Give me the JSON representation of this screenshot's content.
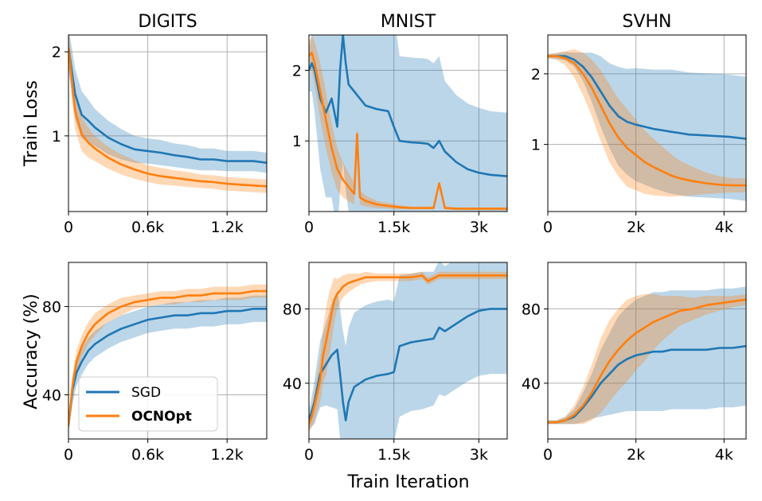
{
  "figure": {
    "ylabel_row1": "Train Loss",
    "ylabel_row2": "Accuracy (%)",
    "xlabel_shared": "Train Iteration"
  },
  "legend": {
    "entries": [
      {
        "label": "SGD",
        "color": "#1f77b4",
        "bold": false
      },
      {
        "label": "OCNOpt",
        "color": "#ff7f0e",
        "bold": true
      }
    ],
    "placement": "lower-left of DIGITS accuracy panel"
  },
  "colors": {
    "sgd": "#1f77b4",
    "ocnopt": "#ff7f0e",
    "grid": "#b0b0b0"
  },
  "chart_data": [
    {
      "id": "digits-loss",
      "type": "line",
      "title": "DIGITS",
      "ylabel": "Train Loss",
      "xlim": [
        0,
        1500
      ],
      "ylim": [
        0.1,
        2.2
      ],
      "xticks": [
        0,
        600,
        1200
      ],
      "xtick_labels": [
        "0",
        "0.6k",
        "1.2k"
      ],
      "yticks": [
        1,
        2
      ],
      "ytick_labels": [
        "1",
        "2"
      ],
      "series": [
        {
          "name": "SGD",
          "x": [
            0,
            50,
            100,
            150,
            200,
            300,
            400,
            500,
            600,
            700,
            800,
            900,
            1000,
            1100,
            1200,
            1300,
            1400,
            1500
          ],
          "y": [
            2.05,
            1.5,
            1.25,
            1.18,
            1.1,
            0.98,
            0.9,
            0.84,
            0.82,
            0.8,
            0.77,
            0.75,
            0.72,
            0.72,
            0.7,
            0.7,
            0.7,
            0.68
          ],
          "band": [
            0.25,
            0.3,
            0.28,
            0.25,
            0.22,
            0.2,
            0.18,
            0.16,
            0.15,
            0.15,
            0.14,
            0.14,
            0.13,
            0.13,
            0.12,
            0.12,
            0.12,
            0.12
          ]
        },
        {
          "name": "OCNOpt",
          "x": [
            0,
            50,
            100,
            150,
            200,
            300,
            400,
            500,
            600,
            700,
            800,
            900,
            1000,
            1100,
            1200,
            1300,
            1400,
            1500
          ],
          "y": [
            2.05,
            1.3,
            1.02,
            0.92,
            0.85,
            0.74,
            0.66,
            0.6,
            0.55,
            0.52,
            0.5,
            0.48,
            0.46,
            0.45,
            0.43,
            0.42,
            0.41,
            0.4
          ],
          "band": [
            0.2,
            0.22,
            0.2,
            0.18,
            0.15,
            0.13,
            0.12,
            0.11,
            0.1,
            0.1,
            0.09,
            0.09,
            0.08,
            0.08,
            0.08,
            0.08,
            0.08,
            0.08
          ]
        }
      ]
    },
    {
      "id": "mnist-loss",
      "type": "line",
      "title": "MNIST",
      "xlim": [
        0,
        3500
      ],
      "ylim": [
        0.0,
        2.5
      ],
      "xticks": [
        0,
        1500,
        3000
      ],
      "xtick_labels": [
        "0",
        "1.5k",
        "3k"
      ],
      "yticks": [
        1,
        2
      ],
      "ytick_labels": [
        "1",
        "2"
      ],
      "series": [
        {
          "name": "SGD",
          "x": [
            0,
            50,
            100,
            150,
            200,
            300,
            400,
            500,
            550,
            600,
            650,
            700,
            800,
            900,
            1000,
            1200,
            1400,
            1500,
            1600,
            1800,
            2000,
            2100,
            2200,
            2300,
            2400,
            2600,
            2800,
            3000,
            3200,
            3500
          ],
          "y": [
            2.0,
            2.1,
            2.0,
            1.8,
            1.6,
            1.4,
            1.6,
            1.2,
            2.0,
            2.5,
            2.1,
            1.8,
            1.7,
            1.6,
            1.5,
            1.45,
            1.42,
            1.2,
            1.0,
            0.98,
            0.97,
            0.96,
            0.9,
            1.0,
            0.85,
            0.7,
            0.6,
            0.55,
            0.52,
            0.5
          ],
          "band": [
            0.3,
            0.4,
            0.6,
            0.8,
            1.0,
            1.2,
            1.4,
            1.5,
            1.7,
            1.8,
            1.8,
            1.8,
            1.8,
            1.8,
            1.8,
            1.8,
            1.8,
            1.6,
            1.2,
            1.2,
            1.2,
            1.2,
            1.2,
            1.2,
            1.0,
            0.95,
            0.93,
            0.92,
            0.9,
            0.9
          ]
        },
        {
          "name": "OCNOpt",
          "x": [
            0,
            50,
            100,
            150,
            200,
            300,
            400,
            500,
            600,
            700,
            800,
            850,
            900,
            1000,
            1200,
            1400,
            1600,
            1800,
            2000,
            2200,
            2300,
            2400,
            2600,
            3000,
            3500
          ],
          "y": [
            2.2,
            2.25,
            2.1,
            1.9,
            1.7,
            1.3,
            0.9,
            0.6,
            0.45,
            0.35,
            0.25,
            1.1,
            0.2,
            0.15,
            0.1,
            0.08,
            0.06,
            0.05,
            0.05,
            0.05,
            0.4,
            0.05,
            0.04,
            0.04,
            0.04
          ],
          "band": [
            0.2,
            0.25,
            0.3,
            0.35,
            0.4,
            0.4,
            0.35,
            0.3,
            0.25,
            0.2,
            0.15,
            0.1,
            0.1,
            0.08,
            0.05,
            0.04,
            0.03,
            0.02,
            0.02,
            0.02,
            0.02,
            0.02,
            0.02,
            0.02,
            0.02
          ]
        }
      ]
    },
    {
      "id": "svhn-loss",
      "type": "line",
      "title": "SVHN",
      "xlim": [
        0,
        4500
      ],
      "ylim": [
        0.05,
        2.55
      ],
      "xticks": [
        0,
        2000,
        4000
      ],
      "xtick_labels": [
        "0",
        "2k",
        "4k"
      ],
      "yticks": [
        1,
        2
      ],
      "ytick_labels": [
        "1",
        "2"
      ],
      "series": [
        {
          "name": "SGD",
          "x": [
            0,
            200,
            400,
            600,
            800,
            1000,
            1200,
            1400,
            1600,
            1800,
            2000,
            2200,
            2400,
            2600,
            2800,
            3000,
            3200,
            3500,
            3800,
            4100,
            4500
          ],
          "y": [
            2.25,
            2.25,
            2.25,
            2.2,
            2.1,
            1.95,
            1.75,
            1.55,
            1.4,
            1.32,
            1.28,
            1.25,
            1.22,
            1.2,
            1.18,
            1.16,
            1.14,
            1.13,
            1.12,
            1.11,
            1.08
          ],
          "band": [
            0.03,
            0.04,
            0.06,
            0.1,
            0.2,
            0.35,
            0.5,
            0.6,
            0.7,
            0.75,
            0.8,
            0.82,
            0.84,
            0.86,
            0.88,
            0.88,
            0.88,
            0.88,
            0.88,
            0.88,
            0.88
          ]
        },
        {
          "name": "OCNOpt",
          "x": [
            0,
            200,
            400,
            600,
            800,
            1000,
            1200,
            1400,
            1600,
            1800,
            2000,
            2200,
            2400,
            2600,
            2800,
            3000,
            3300,
            3600,
            3900,
            4200,
            4500
          ],
          "y": [
            2.25,
            2.25,
            2.22,
            2.15,
            2.0,
            1.8,
            1.55,
            1.3,
            1.1,
            0.95,
            0.85,
            0.75,
            0.68,
            0.62,
            0.56,
            0.52,
            0.48,
            0.45,
            0.43,
            0.42,
            0.42
          ],
          "band": [
            0.03,
            0.05,
            0.1,
            0.2,
            0.3,
            0.4,
            0.5,
            0.55,
            0.55,
            0.55,
            0.5,
            0.45,
            0.4,
            0.35,
            0.3,
            0.25,
            0.2,
            0.15,
            0.12,
            0.1,
            0.1
          ]
        }
      ]
    },
    {
      "id": "digits-acc",
      "type": "line",
      "ylabel": "Accuracy (%)",
      "xlim": [
        0,
        1500
      ],
      "ylim": [
        20,
        100
      ],
      "xticks": [
        0,
        600,
        1200
      ],
      "xtick_labels": [
        "0",
        "0.6k",
        "1.2k"
      ],
      "yticks": [
        40,
        80
      ],
      "ytick_labels": [
        "40",
        "80"
      ],
      "series": [
        {
          "name": "SGD",
          "x": [
            0,
            30,
            60,
            100,
            150,
            200,
            300,
            400,
            500,
            600,
            700,
            800,
            900,
            1000,
            1100,
            1200,
            1300,
            1400,
            1500
          ],
          "y": [
            26,
            42,
            50,
            55,
            60,
            63,
            67,
            70,
            72,
            74,
            75,
            76,
            76,
            77,
            77,
            78,
            78,
            79,
            79
          ],
          "band": [
            3,
            6,
            6,
            6,
            6,
            6,
            6,
            6,
            6,
            6,
            6,
            6,
            6,
            6,
            6,
            6,
            6,
            6,
            6
          ]
        },
        {
          "name": "OCNOpt",
          "x": [
            0,
            30,
            60,
            100,
            150,
            200,
            300,
            400,
            500,
            600,
            700,
            800,
            900,
            1000,
            1100,
            1200,
            1300,
            1400,
            1500
          ],
          "y": [
            26,
            44,
            55,
            62,
            68,
            72,
            77,
            80,
            82,
            83,
            84,
            84,
            85,
            85,
            86,
            86,
            86,
            87,
            87
          ],
          "band": [
            3,
            5,
            5,
            5,
            5,
            5,
            4,
            4,
            3,
            3,
            3,
            3,
            3,
            3,
            3,
            3,
            3,
            3,
            3
          ]
        }
      ]
    },
    {
      "id": "mnist-acc",
      "type": "line",
      "xlabel": "Train Iteration",
      "xlim": [
        0,
        3500
      ],
      "ylim": [
        10,
        105
      ],
      "xticks": [
        0,
        1500,
        3000
      ],
      "xtick_labels": [
        "0",
        "1.5k",
        "3k"
      ],
      "yticks": [
        40,
        80
      ],
      "ytick_labels": [
        "40",
        "80"
      ],
      "series": [
        {
          "name": "SGD",
          "x": [
            0,
            50,
            100,
            150,
            200,
            300,
            400,
            500,
            550,
            600,
            650,
            700,
            800,
            1000,
            1200,
            1400,
            1500,
            1600,
            1800,
            2000,
            2200,
            2300,
            2400,
            2600,
            2800,
            3000,
            3200,
            3500
          ],
          "y": [
            20,
            25,
            30,
            38,
            45,
            50,
            55,
            58,
            45,
            30,
            20,
            30,
            38,
            42,
            44,
            45,
            46,
            60,
            62,
            63,
            64,
            70,
            68,
            72,
            76,
            79,
            80,
            80
          ],
          "band": [
            5,
            8,
            12,
            15,
            18,
            22,
            28,
            32,
            35,
            38,
            40,
            40,
            40,
            40,
            40,
            40,
            38,
            38,
            37,
            37,
            36,
            36,
            35,
            35,
            35,
            35,
            35,
            35
          ]
        },
        {
          "name": "OCNOpt",
          "x": [
            0,
            50,
            100,
            150,
            200,
            250,
            300,
            350,
            400,
            450,
            500,
            600,
            700,
            800,
            900,
            1000,
            1200,
            1500,
            1800,
            2000,
            2100,
            2300,
            2600,
            3000,
            3500
          ],
          "y": [
            18,
            22,
            28,
            35,
            42,
            55,
            62,
            70,
            78,
            85,
            88,
            92,
            94,
            95,
            96,
            97,
            97,
            97,
            97,
            98,
            95,
            98,
            98,
            98,
            98
          ],
          "band": [
            4,
            6,
            8,
            10,
            12,
            15,
            18,
            18,
            15,
            12,
            8,
            6,
            5,
            4,
            3,
            3,
            2,
            2,
            2,
            2,
            2,
            2,
            2,
            2,
            2
          ]
        }
      ]
    },
    {
      "id": "svhn-acc",
      "type": "line",
      "xlim": [
        0,
        4500
      ],
      "ylim": [
        10,
        105
      ],
      "xticks": [
        0,
        2000,
        4000
      ],
      "xtick_labels": [
        "0",
        "2k",
        "4k"
      ],
      "yticks": [
        40,
        80
      ],
      "ytick_labels": [
        "40",
        "80"
      ],
      "series": [
        {
          "name": "SGD",
          "x": [
            0,
            200,
            400,
            600,
            800,
            1000,
            1200,
            1400,
            1600,
            1800,
            2000,
            2200,
            2400,
            2600,
            2800,
            3000,
            3300,
            3600,
            3900,
            4200,
            4500
          ],
          "y": [
            19,
            19,
            20,
            22,
            27,
            33,
            40,
            45,
            50,
            53,
            55,
            56,
            57,
            57,
            58,
            58,
            58,
            58,
            59,
            59,
            60
          ],
          "band": [
            1,
            1,
            2,
            4,
            8,
            12,
            18,
            22,
            26,
            28,
            30,
            31,
            32,
            32,
            32,
            32,
            32,
            32,
            32,
            32,
            32
          ]
        },
        {
          "name": "OCNOpt",
          "x": [
            0,
            200,
            400,
            600,
            800,
            1000,
            1200,
            1400,
            1600,
            1800,
            2000,
            2200,
            2400,
            2600,
            2800,
            3000,
            3300,
            3600,
            3900,
            4200,
            4500
          ],
          "y": [
            19,
            19,
            20,
            23,
            28,
            35,
            44,
            52,
            58,
            63,
            67,
            70,
            73,
            75,
            77,
            79,
            80,
            82,
            83,
            84,
            85
          ],
          "band": [
            1,
            1,
            2,
            5,
            10,
            15,
            20,
            22,
            22,
            22,
            20,
            18,
            15,
            12,
            10,
            8,
            6,
            5,
            4,
            3,
            3
          ]
        }
      ]
    }
  ]
}
